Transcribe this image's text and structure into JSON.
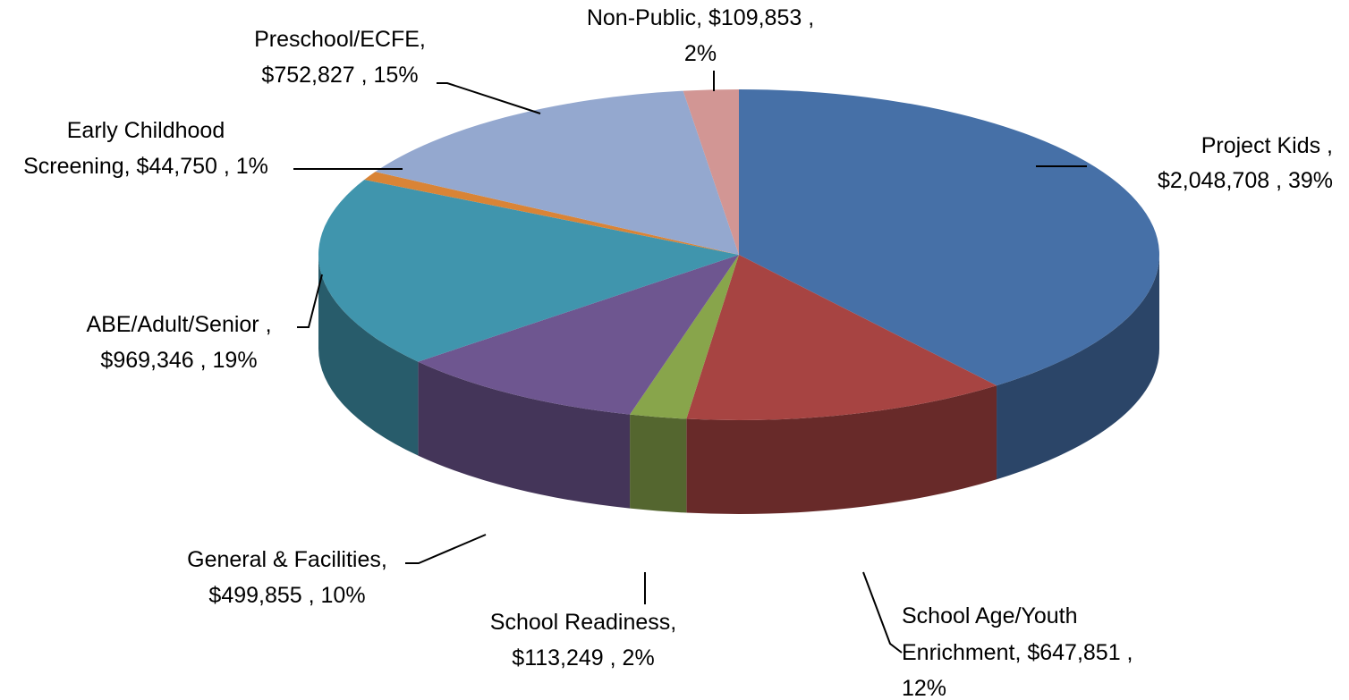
{
  "chart_data": {
    "type": "pie",
    "style": "3d",
    "title": "",
    "legend": "none",
    "slices": [
      {
        "label": "Project Kids",
        "value": 2048708,
        "percent": 39,
        "color": "#4670a7",
        "label_lines": [
          "Project Kids ,",
          "$2,048,708 , 39%"
        ]
      },
      {
        "label": "School Age/Youth Enrichment",
        "value": 647851,
        "percent": 12,
        "color": "#a74442",
        "label_lines": [
          "School Age/Youth",
          "Enrichment,  $647,851 ,",
          "12%"
        ]
      },
      {
        "label": "School Readiness",
        "value": 113249,
        "percent": 2,
        "color": "#88a54b",
        "label_lines": [
          "School Readiness,",
          "$113,249 , 2%"
        ]
      },
      {
        "label": "General & Facilities",
        "value": 499855,
        "percent": 10,
        "color": "#6e5690",
        "label_lines": [
          "General & Facilities,",
          "$499,855 , 10%"
        ]
      },
      {
        "label": "ABE/Adult/Senior",
        "value": 969346,
        "percent": 19,
        "color": "#4095ad",
        "label_lines": [
          "ABE/Adult/Senior ,",
          "$969,346 , 19%"
        ]
      },
      {
        "label": "Early Childhood Screening",
        "value": 44750,
        "percent": 1,
        "color": "#d98436",
        "label_lines": [
          "Early Childhood",
          "Screening,  $44,750 , 1%"
        ]
      },
      {
        "label": "Preschool/ECFE",
        "value": 752827,
        "percent": 15,
        "color": "#94a8cf",
        "label_lines": [
          "Preschool/ECFE,",
          "$752,827 , 15%"
        ]
      },
      {
        "label": "Non-Public",
        "value": 109853,
        "percent": 2,
        "color": "#d29694",
        "label_lines": [
          "Non-Public,  $109,853 ,",
          "2%"
        ]
      }
    ]
  }
}
